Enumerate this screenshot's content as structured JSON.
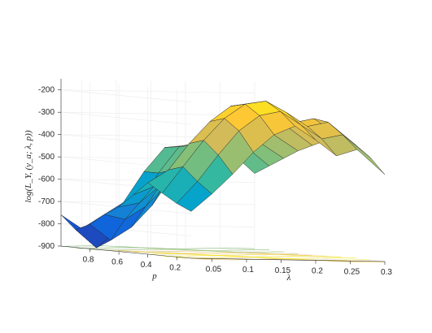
{
  "chart_data": {
    "type": "surface",
    "ylabel": "log(L_Y, (y_a; λ, p))",
    "xlabel": "λ",
    "plabel": "p",
    "lambda_ticks": [
      0.05,
      0.1,
      0.15,
      0.2,
      0.25,
      0.3
    ],
    "p_ticks": [
      0.2,
      0.4,
      0.6,
      0.8
    ],
    "z_ticks": [
      -900,
      -800,
      -700,
      -600,
      -500,
      -400,
      -300,
      -200
    ],
    "lambda_values": [
      0.02,
      0.05,
      0.08,
      0.11,
      0.14,
      0.17,
      0.2,
      0.23,
      0.26,
      0.3
    ],
    "p_values": [
      0.1,
      0.2,
      0.3,
      0.4,
      0.5,
      0.6,
      0.7,
      0.8,
      0.9,
      1.0
    ],
    "zlim": [
      -900,
      -150
    ],
    "grid": true,
    "colormap": "parula",
    "contour_on_floor": true,
    "surface": [
      [
        -690,
        -610,
        -520,
        -420,
        -340,
        -300,
        -360,
        -430,
        -400,
        -510
      ],
      [
        -660,
        -560,
        -440,
        -330,
        -260,
        -240,
        -300,
        -360,
        -340,
        -440
      ],
      [
        -620,
        -500,
        -380,
        -280,
        -215,
        -200,
        -250,
        -310,
        -290,
        -390
      ],
      [
        -580,
        -520,
        -400,
        -300,
        -230,
        -215,
        -260,
        -300,
        -280,
        -360
      ],
      [
        -640,
        -600,
        -520,
        -400,
        -290,
        -250,
        -290,
        -340,
        -300,
        -380
      ],
      [
        -700,
        -680,
        -600,
        -500,
        -360,
        -300,
        -330,
        -380,
        -320,
        -410
      ],
      [
        -740,
        -760,
        -700,
        -600,
        -440,
        -360,
        -380,
        -420,
        -360,
        -440
      ],
      [
        -790,
        -860,
        -800,
        -700,
        -540,
        -420,
        -420,
        -460,
        -400,
        -480
      ],
      [
        -820,
        -900,
        -820,
        -720,
        -560,
        -440,
        -430,
        -480,
        -420,
        -520
      ],
      [
        -760,
        -820,
        -760,
        -700,
        -560,
        -450,
        -440,
        -500,
        -450,
        -560
      ]
    ]
  },
  "axes": {
    "z_tick_labels": [
      "-900",
      "-800",
      "-700",
      "-600",
      "-500",
      "-400",
      "-300",
      "-200"
    ],
    "lambda_tick_labels": [
      "0.05",
      "0.1",
      "0.15",
      "0.2",
      "0.25",
      "0.3"
    ],
    "p_tick_labels": [
      "0.2",
      "0.4",
      "0.6",
      "0.8"
    ]
  },
  "colors": {
    "parula": [
      "#352a87",
      "#0f5cdd",
      "#1481d6",
      "#06a4ca",
      "#2eb7a4",
      "#87bf77",
      "#d1bb59",
      "#fec832",
      "#f9fb0e"
    ]
  }
}
